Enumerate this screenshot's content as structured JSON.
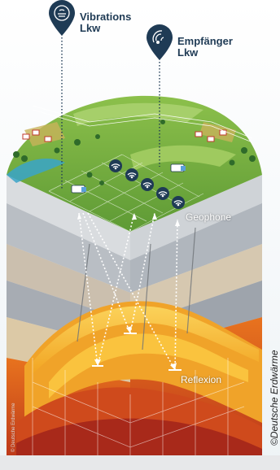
{
  "labels": {
    "vibrations_line1": "Vibrations",
    "vibrations_line2": "Lkw",
    "empfaenger_line1": "Empfänger",
    "empfaenger_line2": "Lkw",
    "geophone": "Geophone",
    "reflexion": "Reflexion"
  },
  "credits": {
    "vertical": "©Deutsche Erdwärme",
    "small": "© Deutsche Erdwärme"
  },
  "icons": {
    "vibrations_pin": "vibration-truck-pin-icon",
    "empfaenger_pin": "receiver-truck-pin-icon",
    "geophone": "geophone-signal-icon"
  },
  "colors": {
    "pin": "#1f3b55",
    "grass": "#7cb342",
    "gold": "#f7b733",
    "deep_red": "#c0391b"
  }
}
